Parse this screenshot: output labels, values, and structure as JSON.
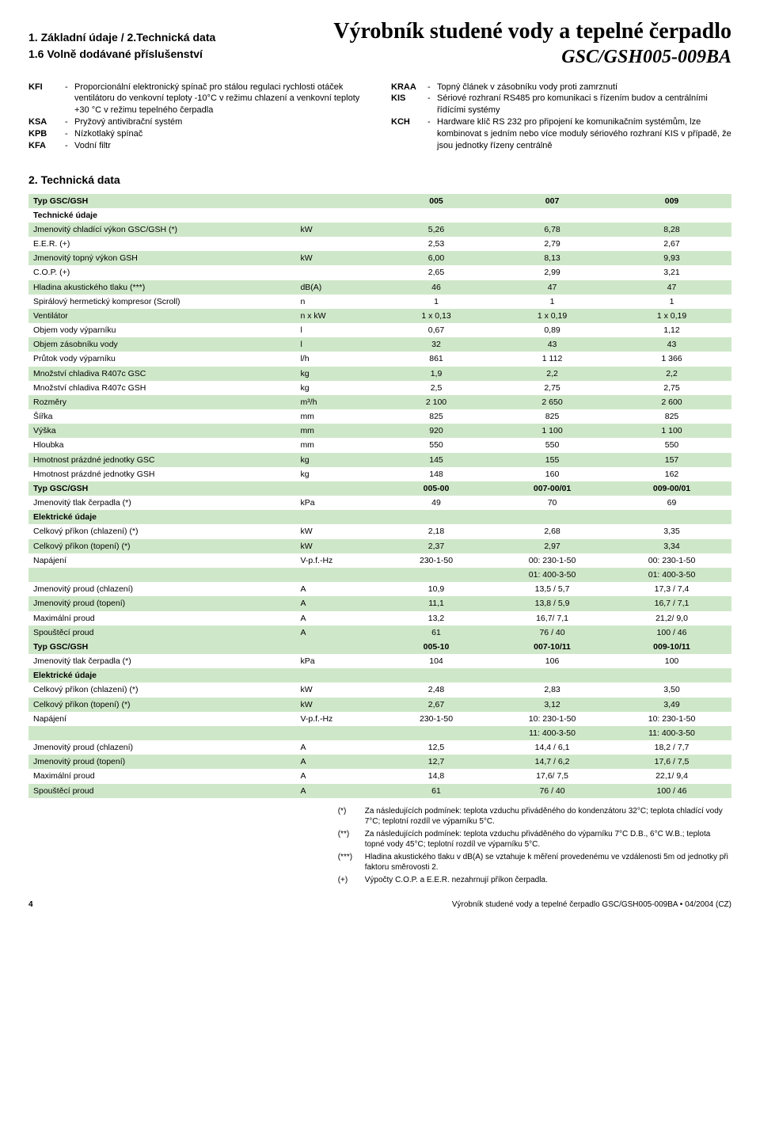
{
  "header": {
    "left_heading": "1. Základní údaje / 2.Technická data",
    "left_sub": "1.6 Volně dodávané příslušenství",
    "title": "Výrobník studené vody a tepelné čerpadlo",
    "subtitle": "GSC/GSH005-009BA"
  },
  "defs_left": [
    {
      "k": "KFI",
      "v": "Proporcionální elektronický spínač pro stálou regulaci rychlosti otáček ventilátoru do venkovní teploty -10°C v režimu chlazení a venkovní teploty +30 °C v režimu tepelného čerpadla"
    },
    {
      "k": "KSA",
      "v": "Pryžový antivibrační systém"
    },
    {
      "k": "KPB",
      "v": "Nízkotlaký spínač"
    },
    {
      "k": "KFA",
      "v": "Vodní filtr"
    }
  ],
  "defs_right": [
    {
      "k": "KRAA",
      "v": "Topný článek v zásobníku vody proti zamrznutí"
    },
    {
      "k": "KIS",
      "v": "Sériové rozhraní RS485 pro komunikaci s řízením budov a centrálními řídícími systémy"
    },
    {
      "k": "KCH",
      "v": "Hardware klíč RS 232 pro připojení ke komunikačním systémům, lze kombinovat s jedním nebo více moduly sériového rozhraní KIS v případě, že jsou jednotky řízeny centrálně"
    }
  ],
  "section2_heading": "2. Technická data",
  "table": {
    "band_color": "#cfe7c9",
    "cols": [
      "",
      "",
      "005",
      "007",
      "009"
    ],
    "rows": [
      {
        "type": "hdr",
        "cells": [
          "Typ GSC/GSH",
          "",
          "005",
          "007",
          "009"
        ]
      },
      {
        "type": "sub",
        "cells": [
          "Technické údaje",
          "",
          "",
          "",
          ""
        ]
      },
      {
        "type": "band",
        "cells": [
          "Jmenovitý chladící výkon  GSC/GSH (*)",
          "kW",
          "5,26",
          "6,78",
          "8,28"
        ]
      },
      {
        "cells": [
          "E.E.R. (+)",
          "",
          "2,53",
          "2,79",
          "2,67"
        ]
      },
      {
        "type": "band",
        "cells": [
          "Jmenovitý topný výkon GSH",
          "kW",
          "6,00",
          "8,13",
          "9,93"
        ]
      },
      {
        "cells": [
          "C.O.P. (+)",
          "",
          "2,65",
          "2,99",
          "3,21"
        ]
      },
      {
        "type": "band",
        "cells": [
          "Hladina akustického tlaku (***)",
          "dB(A)",
          "46",
          "47",
          "47"
        ]
      },
      {
        "cells": [
          "Spirálový hermetický kompresor (Scroll)",
          "n",
          "1",
          "1",
          "1"
        ]
      },
      {
        "type": "band",
        "cells": [
          "Ventilátor",
          "n x kW",
          "1 x 0,13",
          "1 x 0,19",
          "1 x 0,19"
        ]
      },
      {
        "cells": [
          "Objem vody výparníku",
          "l",
          "0,67",
          "0,89",
          "1,12"
        ]
      },
      {
        "type": "band",
        "cells": [
          "Objem zásobníku vody",
          "l",
          "32",
          "43",
          "43"
        ]
      },
      {
        "cells": [
          "Průtok vody výparníku",
          "l/h",
          "861",
          "1 112",
          "1 366"
        ]
      },
      {
        "type": "band",
        "cells": [
          "Množství chladiva R407c     GSC",
          "kg",
          "1,9",
          "2,2",
          "2,2"
        ]
      },
      {
        "cells": [
          "Množství chladiva R407c     GSH",
          "kg",
          "2,5",
          "2,75",
          "2,75"
        ]
      },
      {
        "type": "band",
        "cells": [
          "Rozměry",
          "m³/h",
          "2 100",
          "2 650",
          "2 600"
        ]
      },
      {
        "cells": [
          "Šířka",
          "mm",
          "825",
          "825",
          "825"
        ]
      },
      {
        "type": "band",
        "cells": [
          "Výška",
          "mm",
          "920",
          "1 100",
          "1 100"
        ]
      },
      {
        "cells": [
          "Hloubka",
          "mm",
          "550",
          "550",
          "550"
        ]
      },
      {
        "type": "band",
        "cells": [
          "Hmotnost prázdné jednotky    GSC",
          "kg",
          "145",
          "155",
          "157"
        ]
      },
      {
        "cells": [
          "Hmotnost prázdné jednotky    GSH",
          "kg",
          "148",
          "160",
          "162"
        ]
      },
      {
        "type": "hdr",
        "cells": [
          "Typ GSC/GSH",
          "",
          "005-00",
          "007-00/01",
          "009-00/01"
        ]
      },
      {
        "cells": [
          "Jmenovitý tlak čerpadla (*)",
          "kPa",
          "49",
          "70",
          "69"
        ]
      },
      {
        "type": "sub band",
        "cells": [
          "Elektrické údaje",
          "",
          "",
          "",
          ""
        ]
      },
      {
        "cells": [
          "Celkový příkon (chlazení) (*)",
          "kW",
          "2,18",
          "2,68",
          "3,35"
        ]
      },
      {
        "type": "band",
        "cells": [
          "Celkový příkon (topení) (*)",
          "kW",
          "2,37",
          "2,97",
          "3,34"
        ]
      },
      {
        "cells": [
          "Napájení",
          "V-p.f.-Hz",
          "230-1-50",
          "00: 230-1-50",
          "00: 230-1-50"
        ]
      },
      {
        "type": "band",
        "cells": [
          "",
          "",
          "",
          "01: 400-3-50",
          "01: 400-3-50"
        ]
      },
      {
        "cells": [
          "Jmenovitý proud (chlazení)",
          "A",
          "10,9",
          "13,5 / 5,7",
          "17,3 / 7,4"
        ]
      },
      {
        "type": "band",
        "cells": [
          "Jmenovitý proud (topení)",
          "A",
          "11,1",
          "13,8 / 5,9",
          "16,7 / 7,1"
        ]
      },
      {
        "cells": [
          "Maximální proud",
          "A",
          "13,2",
          "16,7/ 7,1",
          "21,2/ 9,0"
        ]
      },
      {
        "type": "band",
        "cells": [
          "Spouštěcí proud",
          "A",
          "61",
          "76 / 40",
          "100 / 46"
        ]
      },
      {
        "type": "hdr",
        "cells": [
          "Typ GSC/GSH",
          "",
          "005-10",
          "007-10/11",
          "009-10/11"
        ]
      },
      {
        "cells": [
          "Jmenovitý tlak čerpadla (*)",
          "kPa",
          "104",
          "106",
          "100"
        ]
      },
      {
        "type": "sub band",
        "cells": [
          "Elektrické údaje",
          "",
          "",
          "",
          ""
        ]
      },
      {
        "cells": [
          "Celkový příkon (chlazení) (*)",
          "kW",
          "2,48",
          "2,83",
          "3,50"
        ]
      },
      {
        "type": "band",
        "cells": [
          "Celkový příkon (topení) (*)",
          "kW",
          "2,67",
          "3,12",
          "3,49"
        ]
      },
      {
        "cells": [
          "Napájení",
          "V-p.f.-Hz",
          "230-1-50",
          "10: 230-1-50",
          "10: 230-1-50"
        ]
      },
      {
        "type": "band",
        "cells": [
          "",
          "",
          "",
          "11: 400-3-50",
          "11: 400-3-50"
        ]
      },
      {
        "cells": [
          "Jmenovitý proud (chlazení)",
          "A",
          "12,5",
          "14,4 / 6,1",
          "18,2 / 7,7"
        ]
      },
      {
        "type": "band",
        "cells": [
          "Jmenovitý proud (topení)",
          "A",
          "12,7",
          "14,7 / 6,2",
          "17,6 / 7,5"
        ]
      },
      {
        "cells": [
          "Maximální proud",
          "A",
          "14,8",
          "17,6/ 7,5",
          "22,1/ 9,4"
        ]
      },
      {
        "type": "band",
        "cells": [
          "Spouštěcí proud",
          "A",
          "61",
          "76 / 40",
          "100 / 46"
        ]
      }
    ]
  },
  "notes": [
    {
      "k": "(*)",
      "v": "Za následujících podmínek: teplota vzduchu přiváděného do kondenzátoru 32°C; teplota chladící vody 7°C; teplotní rozdíl ve výparníku 5°C."
    },
    {
      "k": "(**)",
      "v": "Za následujících podmínek: teplota vzduchu přiváděného do výparníku 7°C D.B., 6°C W.B.; teplota topné vody 45°C; teplotní rozdíl ve výparníku 5°C."
    },
    {
      "k": "(***)",
      "v": "Hladina akustického tlaku v dB(A) se vztahuje k měření provedenému ve vzdálenosti 5m od jednotky při faktoru směrovosti 2."
    },
    {
      "k": "(+)",
      "v": "Výpočty C.O.P. a E.E.R. nezahrnují příkon čerpadla."
    }
  ],
  "footer": {
    "page": "4",
    "right": "Výrobník studené vody a tepelné čerpadlo GSC/GSH005-009BA  •  04/2004 (CZ)"
  }
}
